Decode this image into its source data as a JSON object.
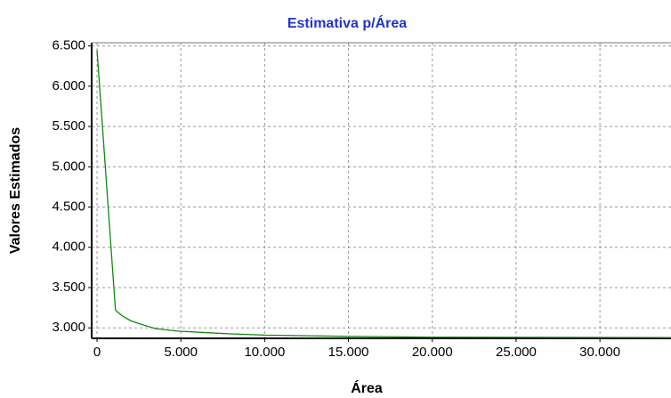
{
  "chart_data": {
    "type": "line",
    "title": "Estimativa p/Área",
    "xlabel": "Área",
    "ylabel": "Valores Estimados",
    "series": [
      {
        "name": "Estimativa",
        "color": "#118811",
        "x": [
          0,
          1100,
          1500,
          2000,
          2700,
          3500,
          4800,
          7500,
          10000,
          15000,
          20000,
          34240
        ],
        "values": [
          6450,
          3220,
          3150,
          3090,
          3040,
          2990,
          2960,
          2930,
          2910,
          2895,
          2885,
          2880
        ]
      }
    ],
    "xlim": [
      -320,
      34240
    ],
    "ylim": [
      2870,
      6540
    ],
    "xticks": [
      0,
      {
        "value": 5000,
        "label": "5.000"
      },
      {
        "value": 10000,
        "label": "10.000"
      },
      {
        "value": 15000,
        "label": "15.000"
      },
      {
        "value": 20000,
        "label": "20.000"
      },
      {
        "value": 25000,
        "label": "25.000"
      },
      {
        "value": 30000,
        "label": "30.000"
      }
    ],
    "yticks": [
      {
        "value": 3000,
        "label": "3.000"
      },
      {
        "value": 3500,
        "label": "3.500"
      },
      {
        "value": 4000,
        "label": "4.000"
      },
      {
        "value": 4500,
        "label": "4.500"
      },
      {
        "value": 5000,
        "label": "5.000"
      },
      {
        "value": 5500,
        "label": "5.500"
      },
      {
        "value": 6000,
        "label": "6.000"
      },
      {
        "value": 6500,
        "label": "6.500"
      }
    ],
    "grid": true
  }
}
